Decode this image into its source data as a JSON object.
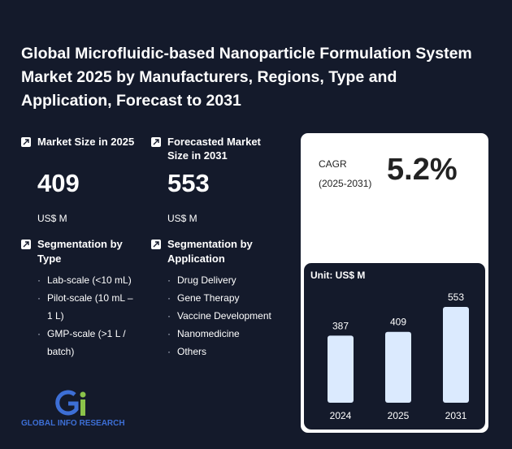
{
  "title": "Global Microfluidic-based Nanoparticle Formulation System Market 2025 by Manufacturers, Regions, Type and Application, Forecast to 2031",
  "market_size": {
    "label": "Market Size in 2025",
    "value": "409",
    "unit": "US$ M"
  },
  "forecast_size": {
    "label": "Forecasted Market Size in 2031",
    "value": "553",
    "unit": "US$ M"
  },
  "cagr": {
    "label_line1": "CAGR",
    "label_line2": "(2025-2031)",
    "value": "5.2%"
  },
  "segmentation_type": {
    "title": "Segmentation by Type",
    "items": [
      "Lab-scale (<10 mL)",
      "Pilot-scale (10 mL – 1 L)",
      "GMP-scale (>1 L / batch)"
    ]
  },
  "segmentation_application": {
    "title": "Segmentation by Application",
    "items": [
      "Drug Delivery",
      "Gene Therapy",
      "Vaccine Development",
      "Nanomedicine",
      "Others"
    ]
  },
  "logo": {
    "text": "GLOBAL INFO RESEARCH"
  },
  "colors": {
    "background": "#141a2b",
    "bar": "#dbeafe",
    "card": "#ffffff",
    "logo_blue": "#3d6fd6",
    "logo_green": "#8bc34a"
  },
  "chart_data": {
    "type": "bar",
    "unit_label": "Unit: US$ M",
    "categories": [
      "2024",
      "2025",
      "2031"
    ],
    "values": [
      387,
      409,
      553
    ],
    "ylim": [
      0,
      553
    ]
  }
}
